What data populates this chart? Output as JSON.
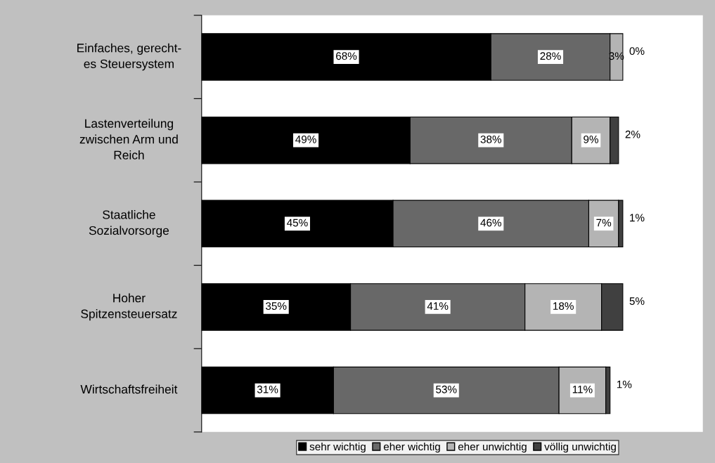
{
  "chart_data": {
    "type": "bar",
    "orientation": "horizontal",
    "stacked": true,
    "legend": "bottom",
    "grid": false,
    "categories": [
      "Einfaches, gerecht-\nes Steuersystem",
      "Lastenverteilung\nzwischen Arm und\nReich",
      "Staatliche\nSozialvorsorge",
      "Hoher\nSpitzensteuersatz",
      "Wirtschaftsfreiheit"
    ],
    "series": [
      {
        "name": "sehr wichtig",
        "color": "#000000",
        "values": [
          68,
          49,
          45,
          35,
          31
        ],
        "value_labels": [
          "68%",
          "49%",
          "45%",
          "35%",
          "31%"
        ]
      },
      {
        "name": "eher wichtig",
        "color": "#686868",
        "values": [
          28,
          38,
          46,
          41,
          53
        ],
        "value_labels": [
          "28%",
          "38%",
          "46%",
          "41%",
          "53%"
        ]
      },
      {
        "name": "eher unwichtig",
        "color": "#b4b4b4",
        "values": [
          3,
          9,
          7,
          18,
          11
        ],
        "value_labels": [
          "3%",
          "9%",
          "7%",
          "18%",
          "11%"
        ]
      },
      {
        "name": "völlig unwichtig",
        "color": "#404040",
        "values": [
          0,
          2,
          1,
          5,
          1
        ],
        "value_labels": [
          "0%",
          "2%",
          "1%",
          "5%",
          "1%"
        ]
      }
    ]
  }
}
